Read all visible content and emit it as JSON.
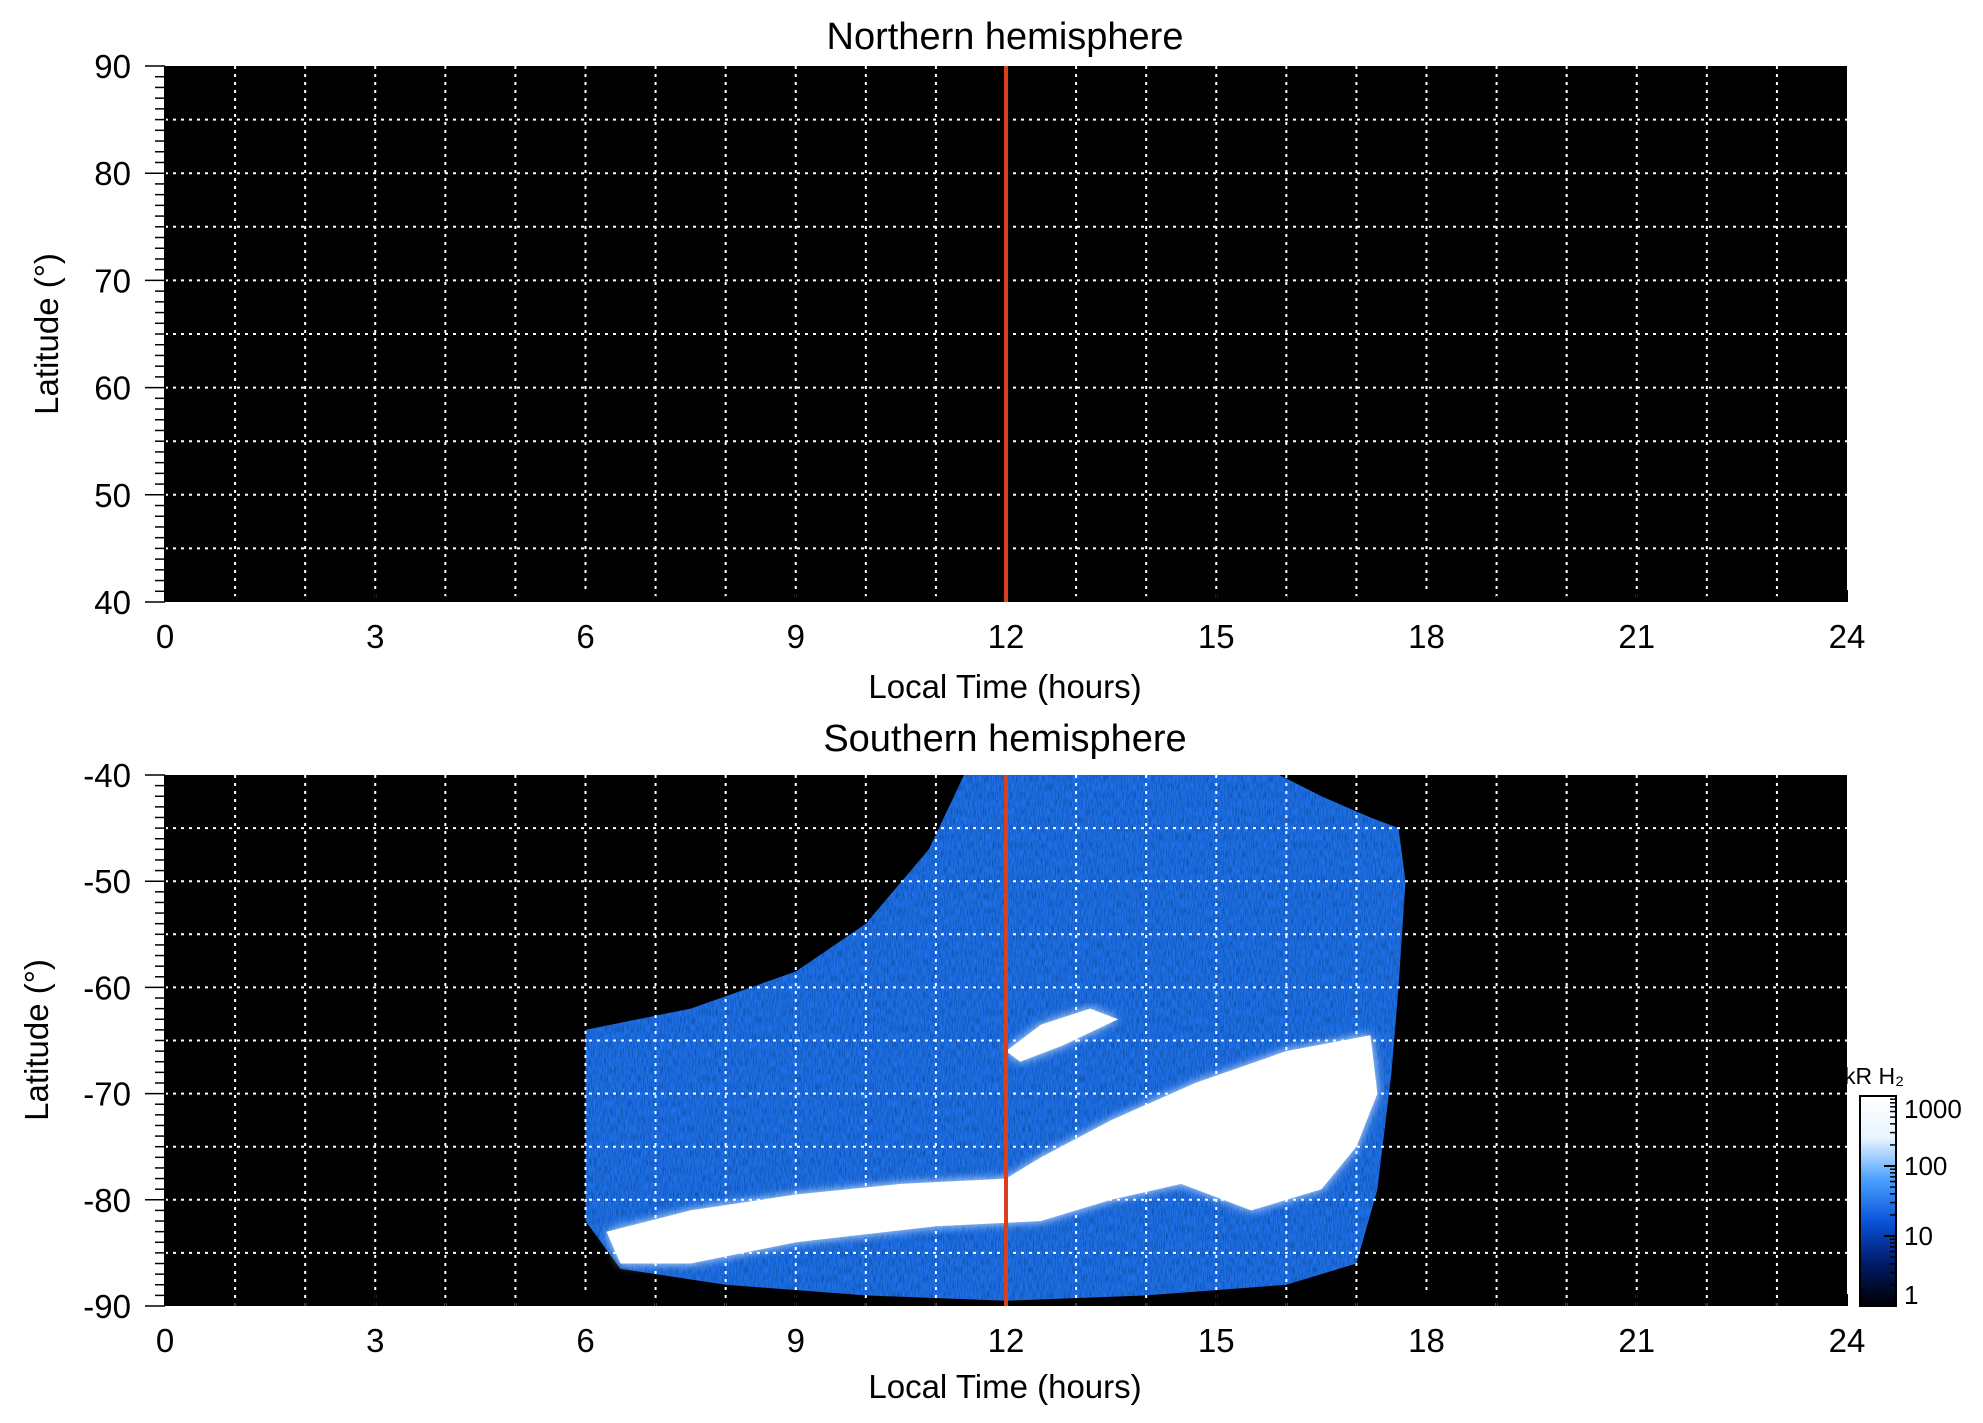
{
  "chart_data": [
    {
      "type": "heatmap",
      "title": "Northern hemisphere",
      "xlabel": "Local Time (hours)",
      "ylabel": "Latitude (°)",
      "xlim": [
        0,
        24
      ],
      "ylim": [
        40,
        90
      ],
      "x_ticks": [
        0,
        3,
        6,
        9,
        12,
        15,
        18,
        21,
        24
      ],
      "x_tick_labels": [
        "0",
        "3",
        "6",
        "9",
        "12",
        "15",
        "18",
        "21",
        "24"
      ],
      "y_ticks": [
        40,
        50,
        60,
        70,
        80,
        90
      ],
      "y_tick_labels": [
        "40",
        "50",
        "60",
        "70",
        "80",
        "90"
      ],
      "x_grid": [
        1,
        2,
        3,
        4,
        5,
        6,
        7,
        8,
        9,
        10,
        11,
        12,
        13,
        14,
        15,
        16,
        17,
        18,
        19,
        20,
        21,
        22,
        23
      ],
      "y_grid": [
        45,
        50,
        55,
        60,
        65,
        70,
        75,
        80,
        85
      ],
      "grid": true,
      "background": "#000000",
      "reference_line": {
        "x": 12,
        "color": "#d9411e"
      },
      "emission_region": null
    },
    {
      "type": "heatmap",
      "title": "Southern hemisphere",
      "xlabel": "Local Time (hours)",
      "ylabel": "Latitude (°)",
      "xlim": [
        0,
        24
      ],
      "ylim": [
        -90,
        -40
      ],
      "x_ticks": [
        0,
        3,
        6,
        9,
        12,
        15,
        18,
        21,
        24
      ],
      "x_tick_labels": [
        "0",
        "3",
        "6",
        "9",
        "12",
        "15",
        "18",
        "21",
        "24"
      ],
      "y_ticks": [
        -90,
        -80,
        -70,
        -60,
        -50,
        -40
      ],
      "y_tick_labels": [
        "-90",
        "-80",
        "-70",
        "-60",
        "-50",
        "-40"
      ],
      "x_grid": [
        1,
        2,
        3,
        4,
        5,
        6,
        7,
        8,
        9,
        10,
        11,
        12,
        13,
        14,
        15,
        16,
        17,
        18,
        19,
        20,
        21,
        22,
        23
      ],
      "y_grid": [
        -85,
        -80,
        -75,
        -70,
        -65,
        -60,
        -55,
        -50,
        -45
      ],
      "grid": true,
      "background": "#000000",
      "reference_line": {
        "x": 12,
        "color": "#d9411e"
      },
      "emission_region": {
        "outline": [
          [
            6.0,
            -64.0
          ],
          [
            7.5,
            -62.0
          ],
          [
            9.0,
            -58.5
          ],
          [
            10.0,
            -54.0
          ],
          [
            10.9,
            -47.0
          ],
          [
            11.4,
            -40.0
          ],
          [
            15.9,
            -40.0
          ],
          [
            16.5,
            -42.0
          ],
          [
            17.2,
            -44.0
          ],
          [
            17.6,
            -45.0
          ],
          [
            17.7,
            -50.0
          ],
          [
            17.6,
            -60.0
          ],
          [
            17.5,
            -68.0
          ],
          [
            17.3,
            -79.0
          ],
          [
            17.0,
            -86.0
          ],
          [
            16.0,
            -88.0
          ],
          [
            14.0,
            -89.0
          ],
          [
            12.0,
            -89.5
          ],
          [
            10.0,
            -89.0
          ],
          [
            8.0,
            -88.0
          ],
          [
            6.5,
            -86.5
          ],
          [
            6.0,
            -82.0
          ],
          [
            6.0,
            -74.0
          ]
        ],
        "bright_bands": [
          [
            [
              6.3,
              -83.0
            ],
            [
              7.5,
              -81.0
            ],
            [
              9.0,
              -79.5
            ],
            [
              10.5,
              -78.5
            ],
            [
              12.0,
              -78.0
            ],
            [
              12.5,
              -76.0
            ],
            [
              13.5,
              -72.5
            ],
            [
              14.7,
              -69.0
            ],
            [
              16.0,
              -66.0
            ],
            [
              17.2,
              -64.5
            ],
            [
              17.3,
              -70.0
            ],
            [
              17.0,
              -75.0
            ],
            [
              16.5,
              -79.0
            ],
            [
              15.5,
              -81.0
            ],
            [
              14.5,
              -78.5
            ],
            [
              13.5,
              -80.0
            ],
            [
              12.5,
              -82.0
            ],
            [
              11.0,
              -82.5
            ],
            [
              9.0,
              -84.0
            ],
            [
              7.5,
              -86.0
            ],
            [
              6.5,
              -86.0
            ]
          ],
          [
            [
              12.0,
              -66.0
            ],
            [
              12.5,
              -63.5
            ],
            [
              13.2,
              -62.0
            ],
            [
              13.6,
              -63.0
            ],
            [
              12.8,
              -65.5
            ],
            [
              12.2,
              -67.0
            ]
          ]
        ]
      }
    }
  ],
  "colorbar": {
    "title": "kR H₂",
    "ticks": [
      1,
      10,
      100,
      1000
    ],
    "tick_labels": [
      "1",
      "10",
      "100",
      "1000"
    ],
    "scale": "log",
    "colors": [
      "#000000",
      "#001a66",
      "#0a52d8",
      "#4aa0ff",
      "#e8f4ff",
      "#ffffff"
    ]
  }
}
